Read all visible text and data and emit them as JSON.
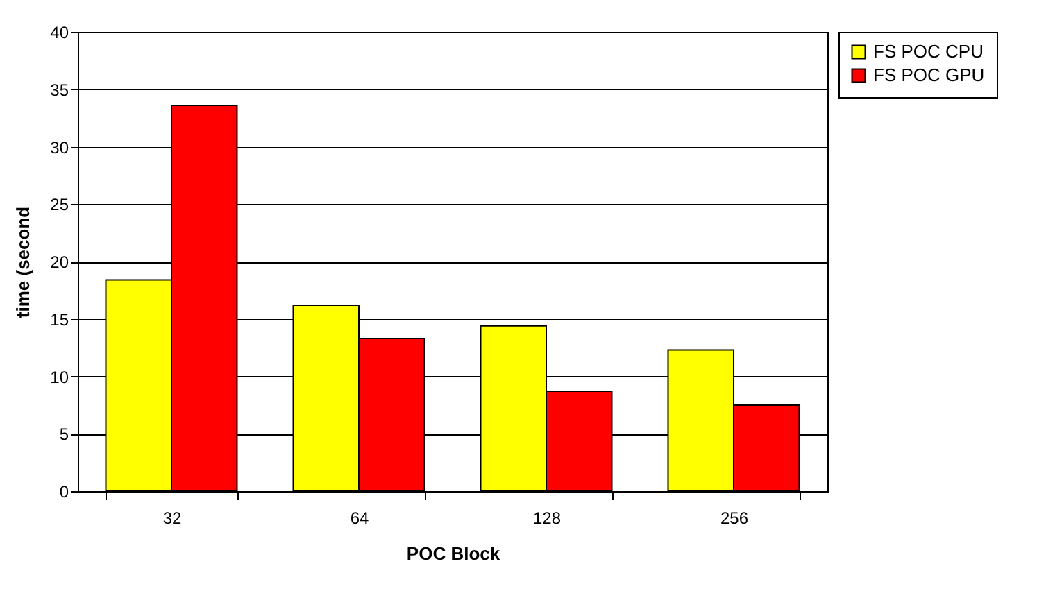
{
  "chart_data": {
    "type": "bar",
    "xlabel": "POC Block",
    "ylabel": "time (second",
    "categories": [
      "32",
      "64",
      "128",
      "256"
    ],
    "series": [
      {
        "name": "FS POC CPU",
        "color": "#ffff00",
        "values": [
          18.4,
          16.2,
          14.4,
          12.3
        ]
      },
      {
        "name": "FS POC GPU",
        "color": "#ff0000",
        "values": [
          33.6,
          13.3,
          8.7,
          7.5
        ]
      }
    ],
    "ylim": [
      0,
      40
    ],
    "yticks": [
      0,
      5,
      10,
      15,
      20,
      25,
      30,
      35,
      40
    ],
    "grid": "y",
    "legend": "right"
  }
}
